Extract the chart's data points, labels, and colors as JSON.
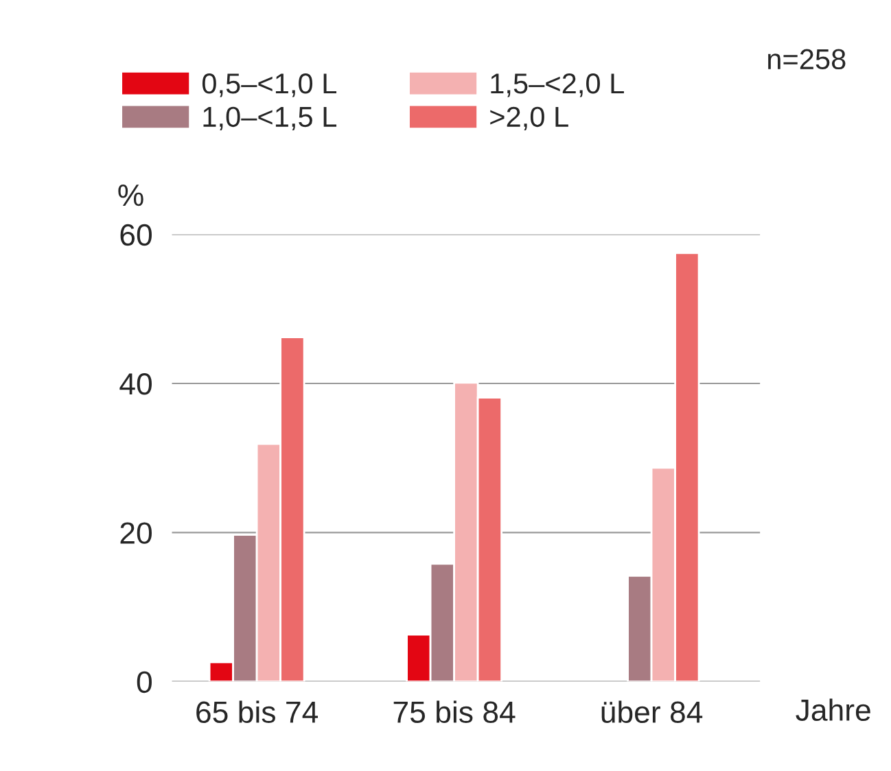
{
  "chart_data": {
    "type": "bar",
    "ylabel": "%",
    "xlabel": "Jahre",
    "categories": [
      "65 bis 74",
      "75 bis 84",
      "über 84"
    ],
    "series": [
      {
        "name": "0,5–<1,0 L",
        "color": "#e30613",
        "values": [
          2.6,
          6.3,
          null
        ]
      },
      {
        "name": "1,0–<1,5 L",
        "color": "#a87b82",
        "values": [
          19.7,
          15.8,
          14.2
        ]
      },
      {
        "name": "1,5–<2,0 L",
        "color": "#f4b1b1",
        "values": [
          31.9,
          40.1,
          28.7
        ]
      },
      {
        "name": ">2,0 L",
        "color": "#ec6a6a",
        "values": [
          46.2,
          38.1,
          57.5
        ]
      }
    ],
    "ylim": [
      0,
      60
    ],
    "yticks": [
      0,
      20,
      40,
      60
    ],
    "grid": "y",
    "legend": "top",
    "annotations": [
      "n=258"
    ]
  }
}
